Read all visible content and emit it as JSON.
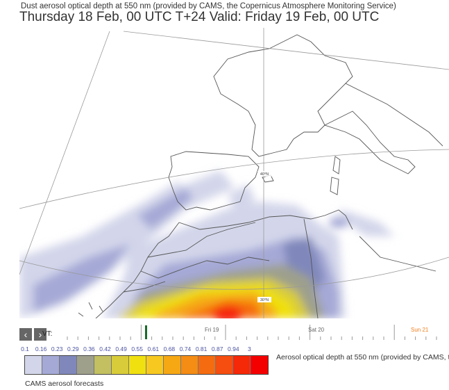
{
  "header": {
    "subtitle": "Dust aerosol optical depth at 550 nm (provided by CAMS, the Copernicus Atmosphere Monitoring Service)",
    "title": "Thursday 18 Feb, 00 UTC T+24 Valid: Friday 19 Feb, 00 UTC"
  },
  "map": {
    "lat_labels": [
      "40°N",
      "30°N"
    ],
    "region": "Western Mediterranean / North Africa"
  },
  "timeline": {
    "prev_icon": "chevron-left-icon",
    "next_icon": "chevron-right-icon",
    "prev": "‹",
    "next": "›",
    "vt_label": "VT:",
    "days": [
      {
        "label": "Fri 19",
        "color": "#666666"
      },
      {
        "label": "Sat 20",
        "color": "#666666"
      },
      {
        "label": "Sun 21",
        "color": "#f08020"
      }
    ],
    "current_marker_color": "#1a6b2a"
  },
  "legend": {
    "ticks": [
      "0.1",
      "0.16",
      "0.23",
      "0.29",
      "0.36",
      "0.42",
      "0.49",
      "0.55",
      "0.61",
      "0.68",
      "0.74",
      "0.81",
      "0.87",
      "0.94",
      "3"
    ],
    "colors": [
      "#d3d6ea",
      "#a5a9d6",
      "#8088bb",
      "#9ea08c",
      "#c2c060",
      "#d8cc3a",
      "#f0e010",
      "#f7c820",
      "#f5a814",
      "#f58c14",
      "#f56c10",
      "#f54e10",
      "#f52808",
      "#f50000"
    ],
    "caption": "Aerosol optical depth at 550 nm (provided by CAMS, th",
    "footer": "CAMS aerosol forecasts"
  }
}
